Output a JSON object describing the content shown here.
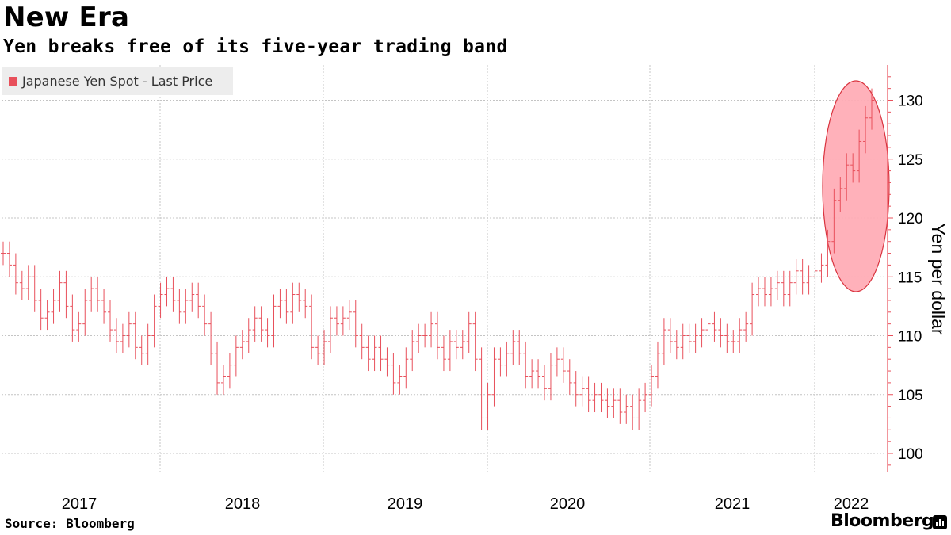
{
  "header": {
    "title": "New Era",
    "subtitle": "Yen breaks free of its five-year trading band"
  },
  "legend": {
    "label": "Japanese Yen Spot - Last Price"
  },
  "footer": {
    "source": "Source: Bloomberg",
    "brand": "Bloomberg"
  },
  "colors": {
    "series": "#e8505b",
    "highlight_fill": "#ffaab4",
    "highlight_stroke": "#d9343f",
    "grid": "#c4c4c4",
    "axis": "#e8505b",
    "legend_bg": "#ededed"
  },
  "icons": {
    "brand": "bloomberg-bars-icon"
  },
  "chart_data": {
    "type": "bar",
    "chart_style": "ohlc-weekly",
    "title": "Yen breaks free of its five-year trading band",
    "ylabel": "Yen per dollar",
    "xlabel": "",
    "ylim": [
      98.5,
      133
    ],
    "yticks": [
      100,
      105,
      110,
      115,
      120,
      125,
      130
    ],
    "xticks": [
      "2017",
      "2018",
      "2019",
      "2020",
      "2021",
      "2022"
    ],
    "grid": true,
    "legend_position": "top-left",
    "series": [
      {
        "name": "Japanese Yen Spot - Last Price",
        "values": [
          117.0,
          116.0,
          114.5,
          114.0,
          115.0,
          113.0,
          111.5,
          112.0,
          113.0,
          114.5,
          112.5,
          110.5,
          111.0,
          113.0,
          114.0,
          113.0,
          112.0,
          110.5,
          109.5,
          110.0,
          111.0,
          109.0,
          108.5,
          110.0,
          112.5,
          113.5,
          114.0,
          113.0,
          112.0,
          113.0,
          113.5,
          112.5,
          111.0,
          108.5,
          106.0,
          106.5,
          107.5,
          109.0,
          109.5,
          110.5,
          111.5,
          110.5,
          110.0,
          112.5,
          113.0,
          112.0,
          113.5,
          113.0,
          112.5,
          109.0,
          108.5,
          109.5,
          111.5,
          111.0,
          111.5,
          112.0,
          110.0,
          109.0,
          108.0,
          109.0,
          108.0,
          107.5,
          106.0,
          106.5,
          108.0,
          109.5,
          110.0,
          110.0,
          111.0,
          109.0,
          108.0,
          109.5,
          109.0,
          109.5,
          111.0,
          108.0,
          103.0,
          105.0,
          108.0,
          107.5,
          108.5,
          109.5,
          108.5,
          106.5,
          107.0,
          106.5,
          105.5,
          107.5,
          108.0,
          107.0,
          106.0,
          105.0,
          105.5,
          104.5,
          105.0,
          104.5,
          104.0,
          104.5,
          103.5,
          104.0,
          103.0,
          104.5,
          105.0,
          106.5,
          108.5,
          110.5,
          109.5,
          109.0,
          110.0,
          109.5,
          110.0,
          110.5,
          111.0,
          110.5,
          110.0,
          109.5,
          109.5,
          110.5,
          111.0,
          113.5,
          114.0,
          113.5,
          114.0,
          114.5,
          113.5,
          114.5,
          115.5,
          114.5,
          115.0,
          115.5,
          116.0,
          118.0,
          121.5,
          122.5,
          124.5,
          124.0,
          126.5,
          128.5,
          130.0
        ]
      }
    ]
  }
}
